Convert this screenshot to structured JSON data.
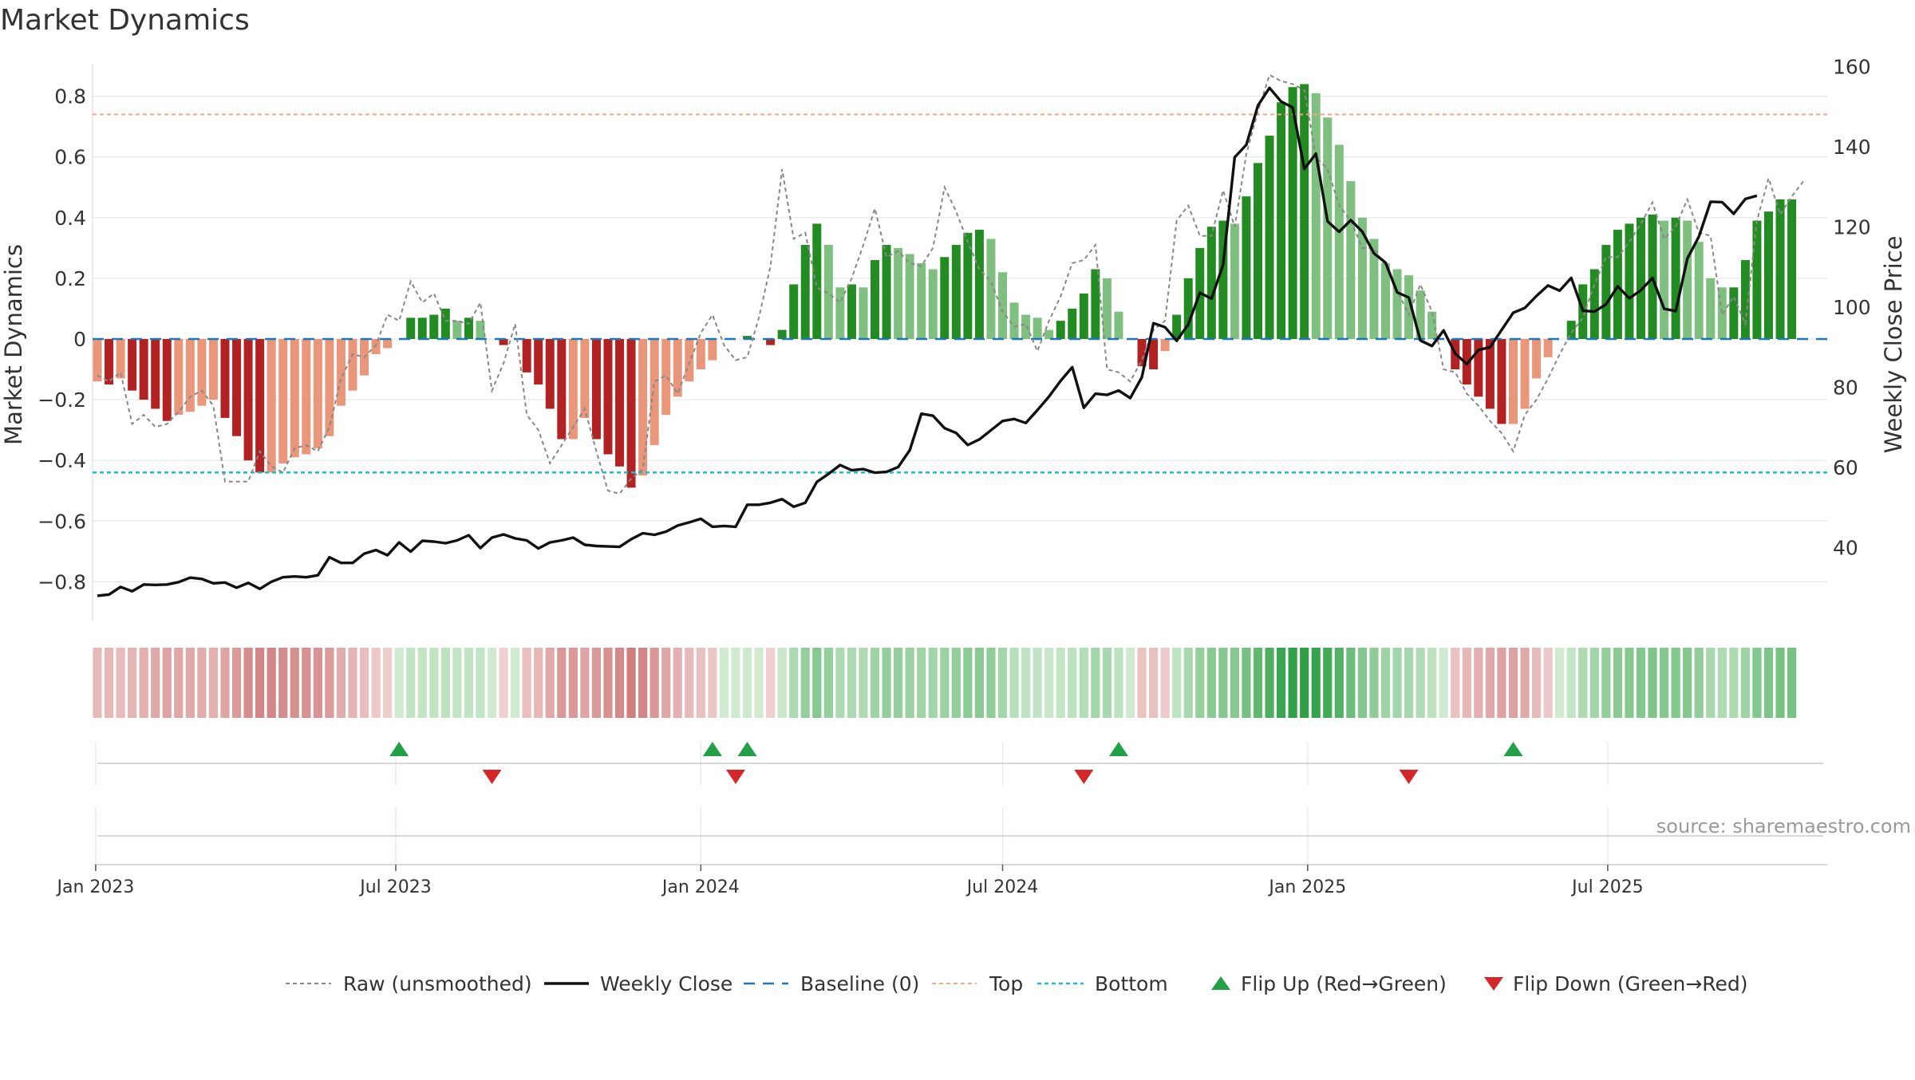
{
  "chart_data": {
    "type": "bar",
    "title": "Market Dynamics",
    "ylabel_left": "Market Dynamics",
    "ylabel_right": "Weekly Close Price",
    "source": "source: sharemaestro.com",
    "ylim_left": [
      -0.92,
      0.92
    ],
    "ylim_right": [
      22.4,
      161.7
    ],
    "yticks_left": [
      0.8,
      0.6,
      0.4,
      0.2,
      0,
      -0.2,
      -0.4,
      -0.6,
      -0.8
    ],
    "yticks_left_labels": [
      "0.8",
      "0.6",
      "0.4",
      "0.2",
      "0",
      "−0.2",
      "−0.4",
      "−0.6",
      "−0.8"
    ],
    "yticks_right": [
      40,
      60,
      80,
      100,
      120,
      140,
      160
    ],
    "yticks_right_labels": [
      "40",
      "60",
      "80",
      "100",
      "120",
      "140",
      "160"
    ],
    "x_start": "2023-01-02",
    "x_end": "2025-09-29",
    "x_tick_labels": [
      "Jan 2023",
      "Jul 2023",
      "Jan 2024",
      "Jul 2024",
      "Jan 2025",
      "Jul 2025"
    ],
    "x_tick_dates": [
      "2023-01-01",
      "2023-07-01",
      "2024-01-01",
      "2024-07-01",
      "2025-01-01",
      "2025-07-01"
    ],
    "top_line": 0.74,
    "bottom_line": -0.44,
    "baseline": 0,
    "grid": true,
    "legend_position": "bottom",
    "legend": [
      {
        "label": "Raw (unsmoothed)",
        "style": "dotted-gray"
      },
      {
        "label": "Weekly Close",
        "style": "solid-black"
      },
      {
        "label": "Baseline (0)",
        "style": "dashed-blue"
      },
      {
        "label": "Top",
        "style": "dotted-orange"
      },
      {
        "label": "Bottom",
        "style": "dotted-cyan"
      },
      {
        "label": "Flip Up (Red→Green)",
        "style": "triangle-up-green"
      },
      {
        "label": "Flip Down (Green→Red)",
        "style": "triangle-down-red"
      }
    ],
    "series": [
      {
        "name": "Market Dynamics",
        "values": [
          -0.14,
          -0.15,
          -0.13,
          -0.17,
          -0.2,
          -0.23,
          -0.27,
          -0.25,
          -0.24,
          -0.22,
          -0.2,
          -0.26,
          -0.32,
          -0.4,
          -0.44,
          -0.44,
          -0.41,
          -0.39,
          -0.38,
          -0.36,
          -0.32,
          -0.22,
          -0.17,
          -0.12,
          -0.05,
          -0.03,
          0.0,
          0.07,
          0.07,
          0.08,
          0.1,
          0.06,
          0.07,
          0.06,
          0.0,
          -0.02,
          -0.0,
          -0.11,
          -0.15,
          -0.23,
          -0.33,
          -0.33,
          -0.26,
          -0.33,
          -0.38,
          -0.42,
          -0.49,
          -0.45,
          -0.35,
          -0.25,
          -0.19,
          -0.14,
          -0.1,
          -0.07,
          0.0,
          0.0,
          0.01,
          0.0,
          -0.02,
          0.03,
          0.18,
          0.31,
          0.38,
          0.31,
          0.17,
          0.18,
          0.17,
          0.26,
          0.31,
          0.3,
          0.28,
          0.25,
          0.23,
          0.27,
          0.31,
          0.35,
          0.36,
          0.33,
          0.22,
          0.12,
          0.08,
          0.07,
          0.03,
          0.06,
          0.1,
          0.15,
          0.23,
          0.2,
          0.09,
          0.0,
          -0.09,
          -0.1,
          -0.04,
          0.08,
          0.2,
          0.3,
          0.37,
          0.39,
          0.38,
          0.47,
          0.58,
          0.67,
          0.78,
          0.83,
          0.84,
          0.81,
          0.73,
          0.64,
          0.52,
          0.4,
          0.33,
          0.25,
          0.23,
          0.21,
          0.16,
          0.09,
          0.0,
          -0.1,
          -0.15,
          -0.19,
          -0.23,
          -0.28,
          -0.28,
          -0.23,
          -0.13,
          -0.06,
          0.0,
          0.06,
          0.18,
          0.23,
          0.31,
          0.36,
          0.38,
          0.4,
          0.41,
          0.39,
          0.4,
          0.39,
          0.32,
          0.2,
          0.17,
          0.17,
          0.26,
          0.39,
          0.42,
          0.46,
          0.46
        ]
      },
      {
        "name": "Raw (unsmoothed)",
        "values": [
          -0.12,
          -0.14,
          -0.11,
          -0.28,
          -0.25,
          -0.29,
          -0.28,
          -0.24,
          -0.19,
          -0.17,
          -0.22,
          -0.47,
          -0.47,
          -0.47,
          -0.37,
          -0.42,
          -0.44,
          -0.36,
          -0.35,
          -0.37,
          -0.29,
          -0.13,
          -0.05,
          -0.06,
          -0.02,
          0.08,
          0.06,
          0.19,
          0.12,
          0.15,
          0.06,
          0.06,
          0.05,
          0.12,
          -0.17,
          -0.08,
          0.05,
          -0.25,
          -0.3,
          -0.41,
          -0.35,
          -0.29,
          -0.23,
          -0.37,
          -0.5,
          -0.51,
          -0.46,
          -0.43,
          -0.14,
          -0.12,
          -0.18,
          -0.08,
          0.02,
          0.08,
          -0.02,
          -0.07,
          -0.06,
          0.07,
          0.24,
          0.56,
          0.33,
          0.35,
          0.17,
          0.15,
          0.12,
          0.2,
          0.31,
          0.43,
          0.27,
          0.29,
          0.25,
          0.24,
          0.3,
          0.5,
          0.42,
          0.32,
          0.23,
          0.19,
          0.09,
          0.04,
          0.05,
          -0.04,
          0.06,
          0.14,
          0.25,
          0.26,
          0.31,
          -0.1,
          -0.11,
          -0.14,
          -0.07,
          0.03,
          0.06,
          0.39,
          0.44,
          0.34,
          0.34,
          0.49,
          0.37,
          0.61,
          0.75,
          0.87,
          0.85,
          0.84,
          0.82,
          0.6,
          0.56,
          0.44,
          0.39,
          0.3,
          0.3,
          0.24,
          0.16,
          0.08,
          0.18,
          0.09,
          -0.1,
          -0.11,
          -0.18,
          -0.22,
          -0.27,
          -0.31,
          -0.37,
          -0.25,
          -0.2,
          -0.13,
          -0.05,
          0.02,
          0.07,
          0.18,
          0.27,
          0.27,
          0.32,
          0.38,
          0.45,
          0.33,
          0.37,
          0.46,
          0.35,
          0.34,
          0.08,
          0.14,
          0.05,
          0.39,
          0.53,
          0.41,
          0.47,
          0.52
        ]
      },
      {
        "name": "Weekly Close",
        "values": [
          28.0,
          28.3,
          30.2,
          29.1,
          30.8,
          30.7,
          30.8,
          31.4,
          32.5,
          32.2,
          31.1,
          31.3,
          30.0,
          31.2,
          29.7,
          31.5,
          32.6,
          32.8,
          32.6,
          33.1,
          37.6,
          36.2,
          36.2,
          38.5,
          39.4,
          38.1,
          41.3,
          39.0,
          41.7,
          41.5,
          41.1,
          41.8,
          43.1,
          39.9,
          42.5,
          43.3,
          42.3,
          41.8,
          39.8,
          41.3,
          41.8,
          42.5,
          40.7,
          40.4,
          40.3,
          40.2,
          42.1,
          43.6,
          43.2,
          44.0,
          45.5,
          46.3,
          47.2,
          45.2,
          45.4,
          45.2,
          50.7,
          50.7,
          51.2,
          52.1,
          50.2,
          51.2,
          56.4,
          58.4,
          60.6,
          59.3,
          59.6,
          58.7,
          58.9,
          60.1,
          64.3,
          73.4,
          72.9,
          69.8,
          68.6,
          65.6,
          67.0,
          69.3,
          71.6,
          72.1,
          71.1,
          74.3,
          77.7,
          81.6,
          85.0,
          74.9,
          78.4,
          78.1,
          79.2,
          77.3,
          82.5,
          96.0,
          95.0,
          91.6,
          95.7,
          103.6,
          102.1,
          110.6,
          137.4,
          140.5,
          150.3,
          154.7,
          151.3,
          149.8,
          134.5,
          138.3,
          121.4,
          118.8,
          121.7,
          118.8,
          113.4,
          111.1,
          103.7,
          102.4,
          91.7,
          90.3,
          94.2,
          88.4,
          85.8,
          89.3,
          90.0,
          94.3,
          98.6,
          99.8,
          102.8,
          105.4,
          104.1,
          107.3,
          99.1,
          98.9,
          100.7,
          105.2,
          102.2,
          104.2,
          107.3,
          99.6,
          99.0,
          112.1,
          117.6,
          126.3,
          126.2,
          123.3,
          127.0,
          127.8
        ]
      }
    ],
    "heat_strip_values": [
      -0.14,
      -0.15,
      -0.13,
      -0.17,
      -0.2,
      -0.23,
      -0.27,
      -0.25,
      -0.24,
      -0.22,
      -0.2,
      -0.26,
      -0.32,
      -0.4,
      -0.44,
      -0.44,
      -0.41,
      -0.39,
      -0.38,
      -0.36,
      -0.32,
      -0.22,
      -0.17,
      -0.12,
      -0.05,
      -0.03,
      0.0,
      0.07,
      0.07,
      0.08,
      0.1,
      0.06,
      0.07,
      0.06,
      0.0,
      -0.02,
      -0.0,
      -0.11,
      -0.15,
      -0.23,
      -0.33,
      -0.33,
      -0.26,
      -0.33,
      -0.38,
      -0.42,
      -0.49,
      -0.45,
      -0.35,
      -0.25,
      -0.19,
      -0.14,
      -0.1,
      -0.07,
      0.0,
      0.0,
      0.01,
      0.0,
      -0.02,
      0.03,
      0.18,
      0.31,
      0.38,
      0.31,
      0.17,
      0.18,
      0.17,
      0.26,
      0.31,
      0.3,
      0.28,
      0.25,
      0.23,
      0.27,
      0.31,
      0.35,
      0.36,
      0.33,
      0.22,
      0.12,
      0.08,
      0.07,
      0.03,
      0.06,
      0.1,
      0.15,
      0.23,
      0.2,
      0.09,
      0.0,
      -0.09,
      -0.1,
      -0.04,
      0.08,
      0.2,
      0.3,
      0.37,
      0.39,
      0.38,
      0.47,
      0.58,
      0.67,
      0.78,
      0.83,
      0.84,
      0.81,
      0.73,
      0.64,
      0.52,
      0.4,
      0.33,
      0.25,
      0.23,
      0.21,
      0.16,
      0.09,
      0.0,
      -0.1,
      -0.15,
      -0.19,
      -0.23,
      -0.28,
      -0.28,
      -0.23,
      -0.13,
      -0.06,
      0.0,
      0.06,
      0.18,
      0.23,
      0.31,
      0.36,
      0.38,
      0.4,
      0.41,
      0.39,
      0.4,
      0.39,
      0.32,
      0.2,
      0.17,
      0.17,
      0.26,
      0.39,
      0.42,
      0.46,
      0.46
    ],
    "flip_up_weeks": [
      26,
      53,
      56,
      88,
      122
    ],
    "flip_down_weeks": [
      34,
      55,
      85,
      113
    ]
  },
  "colors": {
    "bull_dark": "#228b22",
    "bull_light": "#7fbf7f",
    "bear_dark": "#b22222",
    "bear_light": "#e9967a",
    "close_line": "#111111",
    "raw_line": "#888888",
    "baseline": "#1f77b4",
    "top": "#f4a582",
    "bottom": "#17becf",
    "flip_up": "#22a045",
    "flip_down": "#d62728",
    "grid": "#e3e8ec",
    "axis_text": "#333333",
    "source_text": "#9a9a9a"
  }
}
